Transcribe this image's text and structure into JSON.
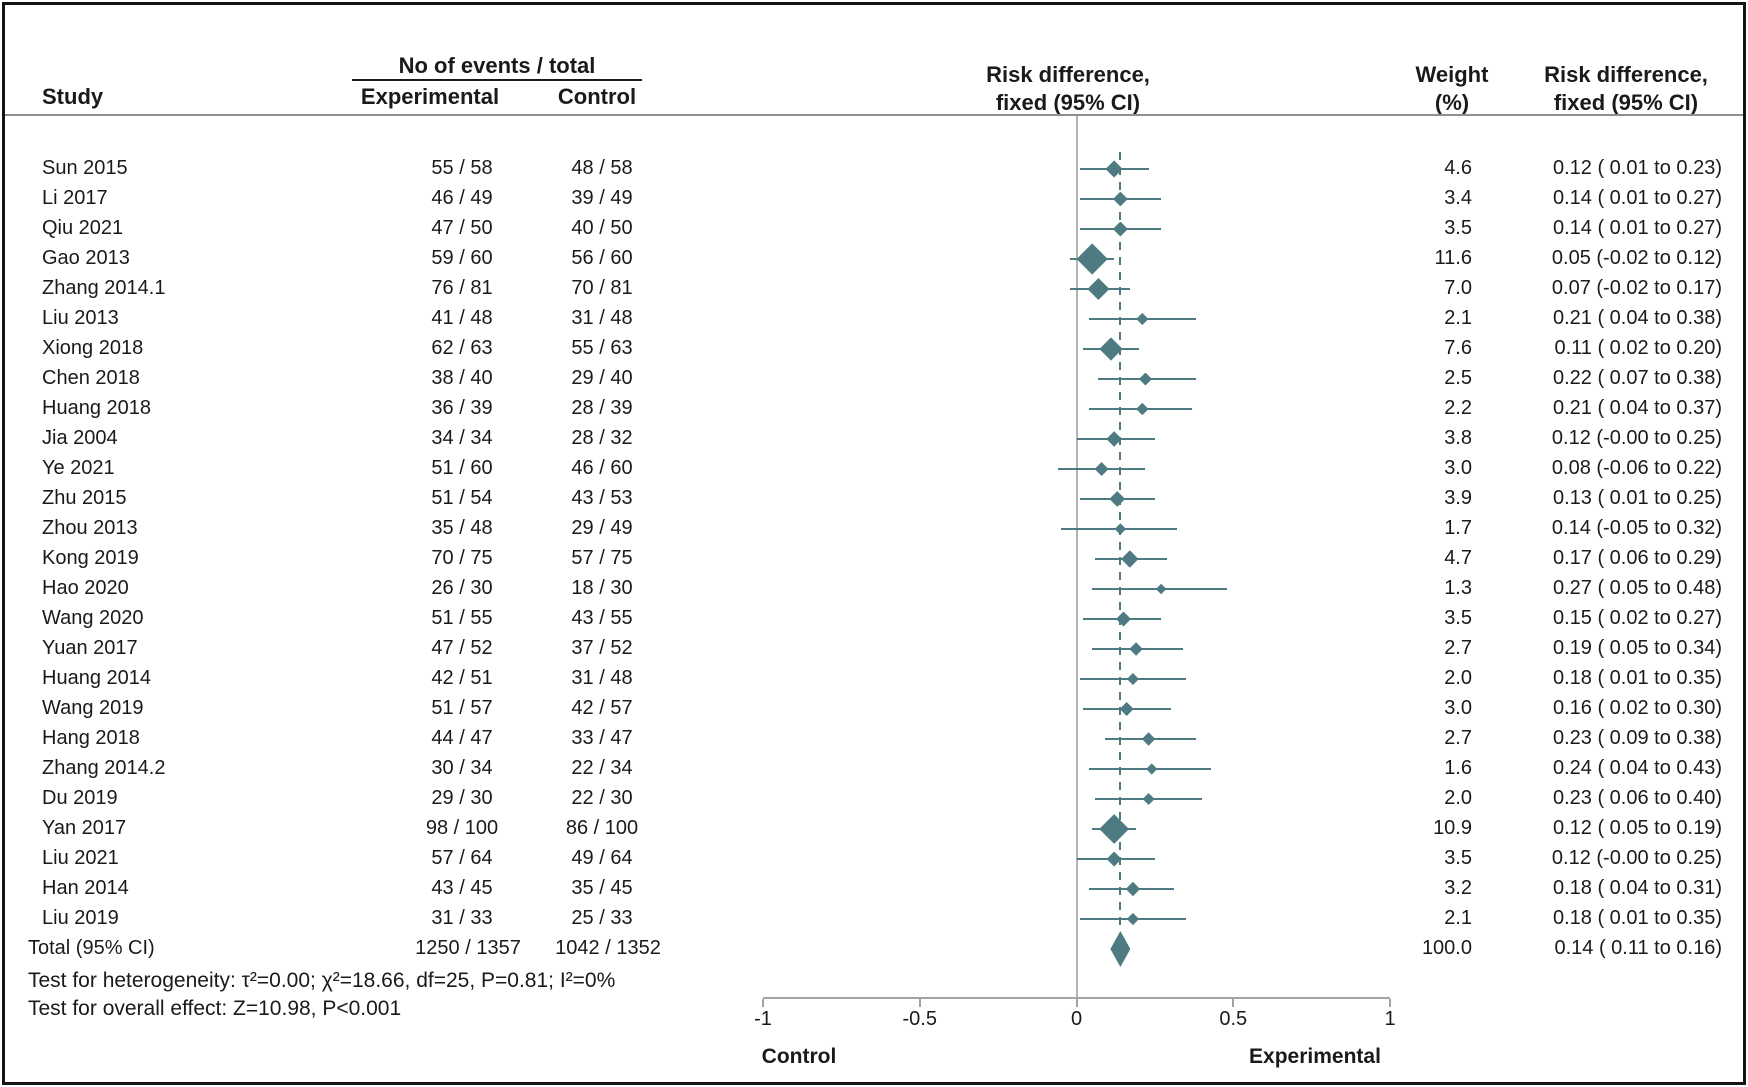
{
  "columns": {
    "study": "Study",
    "events_group": "No of events / total",
    "experimental": "Experimental",
    "control": "Control",
    "plot_header_line1": "Risk difference,",
    "plot_header_line2": "fixed (95% CI)",
    "weight_line1": "Weight",
    "weight_line2": "(%)",
    "rd_col_line1": "Risk difference,",
    "rd_col_line2": "fixed (95% CI)"
  },
  "colors": {
    "marker": "#4e7b82",
    "zero_line": "#b3b3b3",
    "axis": "#a3a3a3",
    "header_rule": "#8f8f8f",
    "text": "#1a1a1a"
  },
  "chart_data": {
    "type": "forest",
    "effect_measure": "Risk difference, fixed (95% CI)",
    "x_axis": {
      "range": [
        -1,
        1
      ],
      "ticks": [
        -1,
        -0.5,
        0,
        0.5,
        1
      ],
      "left_label": "Control",
      "right_label": "Experimental",
      "grid": false
    },
    "zero_line": 0,
    "pooled_estimate_line": 0.14,
    "studies": [
      {
        "name": "Sun 2015",
        "exp": "55 / 58",
        "ctrl": "48 / 58",
        "weight": "4.6",
        "rd": 0.12,
        "lo": 0.01,
        "hi": 0.23,
        "text": "0.12 ( 0.01 to 0.23)"
      },
      {
        "name": "Li 2017",
        "exp": "46 / 49",
        "ctrl": "39 / 49",
        "weight": "3.4",
        "rd": 0.14,
        "lo": 0.01,
        "hi": 0.27,
        "text": "0.14 ( 0.01 to 0.27)"
      },
      {
        "name": "Qiu 2021",
        "exp": "47 / 50",
        "ctrl": "40 / 50",
        "weight": "3.5",
        "rd": 0.14,
        "lo": 0.01,
        "hi": 0.27,
        "text": "0.14 ( 0.01 to 0.27)"
      },
      {
        "name": "Gao 2013",
        "exp": "59 / 60",
        "ctrl": "56 / 60",
        "weight": "11.6",
        "rd": 0.05,
        "lo": -0.02,
        "hi": 0.12,
        "text": "0.05 (-0.02 to 0.12)"
      },
      {
        "name": "Zhang 2014.1",
        "exp": "76 / 81",
        "ctrl": "70 / 81",
        "weight": "7.0",
        "rd": 0.07,
        "lo": -0.02,
        "hi": 0.17,
        "text": "0.07 (-0.02 to 0.17)"
      },
      {
        "name": "Liu 2013",
        "exp": "41 / 48",
        "ctrl": "31 / 48",
        "weight": "2.1",
        "rd": 0.21,
        "lo": 0.04,
        "hi": 0.38,
        "text": "0.21 ( 0.04 to 0.38)"
      },
      {
        "name": "Xiong 2018",
        "exp": "62 / 63",
        "ctrl": "55 / 63",
        "weight": "7.6",
        "rd": 0.11,
        "lo": 0.02,
        "hi": 0.2,
        "text": "0.11 ( 0.02 to 0.20)"
      },
      {
        "name": "Chen 2018",
        "exp": "38 / 40",
        "ctrl": "29 / 40",
        "weight": "2.5",
        "rd": 0.22,
        "lo": 0.07,
        "hi": 0.38,
        "text": "0.22 ( 0.07 to 0.38)"
      },
      {
        "name": "Huang 2018",
        "exp": "36 / 39",
        "ctrl": "28 / 39",
        "weight": "2.2",
        "rd": 0.21,
        "lo": 0.04,
        "hi": 0.37,
        "text": "0.21 ( 0.04 to 0.37)"
      },
      {
        "name": "Jia 2004",
        "exp": "34 / 34",
        "ctrl": "28 / 32",
        "weight": "3.8",
        "rd": 0.12,
        "lo": -0.0,
        "hi": 0.25,
        "text": "0.12 (-0.00 to 0.25)"
      },
      {
        "name": "Ye 2021",
        "exp": "51 / 60",
        "ctrl": "46 / 60",
        "weight": "3.0",
        "rd": 0.08,
        "lo": -0.06,
        "hi": 0.22,
        "text": "0.08 (-0.06 to 0.22)"
      },
      {
        "name": "Zhu 2015",
        "exp": "51 / 54",
        "ctrl": "43 / 53",
        "weight": "3.9",
        "rd": 0.13,
        "lo": 0.01,
        "hi": 0.25,
        "text": "0.13 ( 0.01 to 0.25)"
      },
      {
        "name": "Zhou 2013",
        "exp": "35 / 48",
        "ctrl": "29 / 49",
        "weight": "1.7",
        "rd": 0.14,
        "lo": -0.05,
        "hi": 0.32,
        "text": "0.14 (-0.05 to 0.32)"
      },
      {
        "name": "Kong 2019",
        "exp": "70 / 75",
        "ctrl": "57 / 75",
        "weight": "4.7",
        "rd": 0.17,
        "lo": 0.06,
        "hi": 0.29,
        "text": "0.17 ( 0.06 to 0.29)"
      },
      {
        "name": "Hao 2020",
        "exp": "26 / 30",
        "ctrl": "18 / 30",
        "weight": "1.3",
        "rd": 0.27,
        "lo": 0.05,
        "hi": 0.48,
        "text": "0.27 ( 0.05 to 0.48)"
      },
      {
        "name": "Wang 2020",
        "exp": "51 / 55",
        "ctrl": "43 / 55",
        "weight": "3.5",
        "rd": 0.15,
        "lo": 0.02,
        "hi": 0.27,
        "text": "0.15 ( 0.02 to 0.27)"
      },
      {
        "name": "Yuan 2017",
        "exp": "47 / 52",
        "ctrl": "37 / 52",
        "weight": "2.7",
        "rd": 0.19,
        "lo": 0.05,
        "hi": 0.34,
        "text": "0.19 ( 0.05 to 0.34)"
      },
      {
        "name": "Huang 2014",
        "exp": "42 / 51",
        "ctrl": "31 / 48",
        "weight": "2.0",
        "rd": 0.18,
        "lo": 0.01,
        "hi": 0.35,
        "text": "0.18 ( 0.01 to 0.35)"
      },
      {
        "name": "Wang 2019",
        "exp": "51 / 57",
        "ctrl": "42 / 57",
        "weight": "3.0",
        "rd": 0.16,
        "lo": 0.02,
        "hi": 0.3,
        "text": "0.16 ( 0.02 to 0.30)"
      },
      {
        "name": "Hang 2018",
        "exp": "44 / 47",
        "ctrl": "33 / 47",
        "weight": "2.7",
        "rd": 0.23,
        "lo": 0.09,
        "hi": 0.38,
        "text": "0.23 ( 0.09 to 0.38)"
      },
      {
        "name": "Zhang 2014.2",
        "exp": "30 / 34",
        "ctrl": "22 / 34",
        "weight": "1.6",
        "rd": 0.24,
        "lo": 0.04,
        "hi": 0.43,
        "text": "0.24 ( 0.04 to 0.43)"
      },
      {
        "name": "Du 2019",
        "exp": "29 / 30",
        "ctrl": "22 / 30",
        "weight": "2.0",
        "rd": 0.23,
        "lo": 0.06,
        "hi": 0.4,
        "text": "0.23 ( 0.06 to 0.40)"
      },
      {
        "name": "Yan 2017",
        "exp": "98 / 100",
        "ctrl": "86 / 100",
        "weight": "10.9",
        "rd": 0.12,
        "lo": 0.05,
        "hi": 0.19,
        "text": "0.12 ( 0.05 to 0.19)"
      },
      {
        "name": "Liu 2021",
        "exp": "57 / 64",
        "ctrl": "49 / 64",
        "weight": "3.5",
        "rd": 0.12,
        "lo": -0.0,
        "hi": 0.25,
        "text": "0.12 (-0.00 to 0.25)"
      },
      {
        "name": "Han 2014",
        "exp": "43 / 45",
        "ctrl": "35 / 45",
        "weight": "3.2",
        "rd": 0.18,
        "lo": 0.04,
        "hi": 0.31,
        "text": "0.18 ( 0.04 to 0.31)"
      },
      {
        "name": "Liu 2019",
        "exp": "31 / 33",
        "ctrl": "25 / 33",
        "weight": "2.1",
        "rd": 0.18,
        "lo": 0.01,
        "hi": 0.35,
        "text": "0.18 ( 0.01 to 0.35)"
      }
    ],
    "total": {
      "name": "Total (95% CI)",
      "exp": "1250 / 1357",
      "ctrl": "1042 / 1352",
      "weight": "100.0",
      "rd": 0.14,
      "lo": 0.11,
      "hi": 0.16,
      "text": "0.14 ( 0.11 to 0.16)"
    },
    "footnotes": [
      "Test for heterogeneity: τ²=0.00; χ²=18.66, df=25, P=0.81; I²=0%",
      "Test for overall effect: Z=10.98, P<0.001"
    ]
  }
}
